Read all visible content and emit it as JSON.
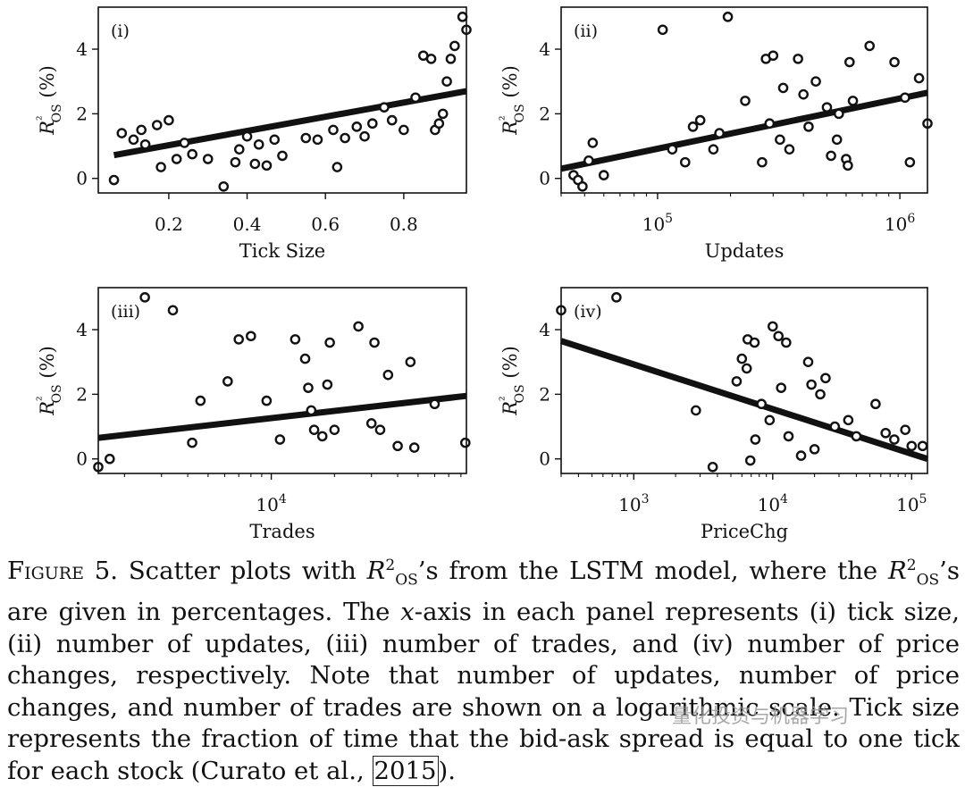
{
  "chart_data": [
    {
      "panel": "(i)",
      "type": "scatter",
      "xlabel": "Tick Size",
      "ylabel": "R²OS (%)",
      "x_scale": "linear",
      "xlim": [
        0.02,
        0.96
      ],
      "ylim": [
        -0.45,
        5.3
      ],
      "x_ticks": [
        0.2,
        0.4,
        0.6,
        0.8
      ],
      "x_tick_labels": [
        "0.2",
        "0.4",
        "0.6",
        "0.8"
      ],
      "y_ticks": [
        0,
        2,
        4
      ],
      "y_tick_labels": [
        "0",
        "2",
        "4"
      ],
      "trend_line": [
        [
          0.06,
          0.72
        ],
        [
          0.96,
          2.7
        ]
      ],
      "points": [
        [
          0.06,
          -0.05
        ],
        [
          0.08,
          1.4
        ],
        [
          0.11,
          1.2
        ],
        [
          0.13,
          1.5
        ],
        [
          0.14,
          1.05
        ],
        [
          0.17,
          1.65
        ],
        [
          0.18,
          0.35
        ],
        [
          0.2,
          1.8
        ],
        [
          0.22,
          0.6
        ],
        [
          0.24,
          1.1
        ],
        [
          0.26,
          0.75
        ],
        [
          0.3,
          0.6
        ],
        [
          0.34,
          -0.25
        ],
        [
          0.37,
          0.5
        ],
        [
          0.38,
          0.9
        ],
        [
          0.4,
          1.3
        ],
        [
          0.42,
          0.45
        ],
        [
          0.43,
          1.05
        ],
        [
          0.45,
          0.4
        ],
        [
          0.47,
          1.2
        ],
        [
          0.49,
          0.7
        ],
        [
          0.55,
          1.25
        ],
        [
          0.58,
          1.2
        ],
        [
          0.62,
          1.5
        ],
        [
          0.63,
          0.35
        ],
        [
          0.65,
          1.25
        ],
        [
          0.68,
          1.6
        ],
        [
          0.7,
          1.3
        ],
        [
          0.72,
          1.7
        ],
        [
          0.75,
          2.2
        ],
        [
          0.77,
          1.8
        ],
        [
          0.8,
          1.5
        ],
        [
          0.83,
          2.5
        ],
        [
          0.85,
          3.8
        ],
        [
          0.87,
          3.7
        ],
        [
          0.88,
          1.5
        ],
        [
          0.89,
          1.7
        ],
        [
          0.9,
          2.0
        ],
        [
          0.91,
          3.0
        ],
        [
          0.92,
          3.7
        ],
        [
          0.93,
          4.1
        ],
        [
          0.95,
          5.0
        ],
        [
          0.96,
          4.6
        ]
      ]
    },
    {
      "panel": "(ii)",
      "type": "scatter",
      "xlabel": "Updates",
      "ylabel": "R²OS (%)",
      "x_scale": "log",
      "xlim": [
        40000,
        1300000
      ],
      "ylim": [
        -0.45,
        5.3
      ],
      "x_ticks": [
        100000,
        1000000
      ],
      "x_tick_labels": [
        "10^5",
        "10^6"
      ],
      "y_ticks": [
        0,
        2,
        4
      ],
      "y_tick_labels": [
        "0",
        "2",
        "4"
      ],
      "trend_line": [
        [
          40000,
          0.3
        ],
        [
          1300000,
          2.65
        ]
      ],
      "points": [
        [
          45000,
          0.1
        ],
        [
          47000,
          -0.05
        ],
        [
          49000,
          -0.25
        ],
        [
          52000,
          0.55
        ],
        [
          54000,
          1.1
        ],
        [
          60000,
          0.1
        ],
        [
          105000,
          4.6
        ],
        [
          115000,
          0.9
        ],
        [
          130000,
          0.5
        ],
        [
          140000,
          1.6
        ],
        [
          150000,
          1.8
        ],
        [
          170000,
          0.9
        ],
        [
          180000,
          1.4
        ],
        [
          195000,
          5.0
        ],
        [
          230000,
          2.4
        ],
        [
          270000,
          0.5
        ],
        [
          280000,
          3.7
        ],
        [
          290000,
          1.7
        ],
        [
          300000,
          3.8
        ],
        [
          320000,
          1.2
        ],
        [
          330000,
          2.8
        ],
        [
          350000,
          0.9
        ],
        [
          380000,
          3.7
        ],
        [
          400000,
          2.6
        ],
        [
          420000,
          1.6
        ],
        [
          450000,
          3.0
        ],
        [
          500000,
          2.2
        ],
        [
          520000,
          0.7
        ],
        [
          550000,
          1.2
        ],
        [
          560000,
          2.0
        ],
        [
          600000,
          0.6
        ],
        [
          610000,
          0.4
        ],
        [
          620000,
          3.6
        ],
        [
          640000,
          2.4
        ],
        [
          750000,
          4.1
        ],
        [
          950000,
          3.6
        ],
        [
          1050000,
          2.5
        ],
        [
          1100000,
          0.5
        ],
        [
          1200000,
          3.1
        ],
        [
          1300000,
          1.7
        ]
      ]
    },
    {
      "panel": "(iii)",
      "type": "scatter",
      "xlabel": "Trades",
      "ylabel": "R²OS (%)",
      "x_scale": "log",
      "xlim": [
        1500,
        85000
      ],
      "ylim": [
        -0.45,
        5.3
      ],
      "x_ticks": [
        10000
      ],
      "x_tick_labels": [
        "10^4"
      ],
      "y_ticks": [
        0,
        2,
        4
      ],
      "y_tick_labels": [
        "0",
        "2",
        "4"
      ],
      "trend_line": [
        [
          1500,
          0.65
        ],
        [
          85000,
          1.95
        ]
      ],
      "points": [
        [
          1500,
          -0.25
        ],
        [
          1700,
          0.0
        ],
        [
          2500,
          5.0
        ],
        [
          3400,
          4.6
        ],
        [
          4200,
          0.5
        ],
        [
          4600,
          1.8
        ],
        [
          6200,
          2.4
        ],
        [
          7000,
          3.7
        ],
        [
          8000,
          3.8
        ],
        [
          9500,
          1.8
        ],
        [
          11000,
          0.6
        ],
        [
          13000,
          3.7
        ],
        [
          14500,
          3.1
        ],
        [
          15000,
          2.2
        ],
        [
          15500,
          1.5
        ],
        [
          16000,
          0.9
        ],
        [
          17500,
          0.7
        ],
        [
          18500,
          2.3
        ],
        [
          19000,
          3.6
        ],
        [
          20000,
          0.9
        ],
        [
          26000,
          4.1
        ],
        [
          30000,
          1.1
        ],
        [
          31000,
          3.6
        ],
        [
          33000,
          0.9
        ],
        [
          36000,
          2.6
        ],
        [
          40000,
          0.4
        ],
        [
          46000,
          3.0
        ],
        [
          48000,
          0.35
        ],
        [
          60000,
          1.7
        ],
        [
          84000,
          0.5
        ]
      ]
    },
    {
      "panel": "(iv)",
      "type": "scatter",
      "xlabel": "PriceChg",
      "ylabel": "R²OS (%)",
      "x_scale": "log",
      "xlim": [
        300,
        130000
      ],
      "ylim": [
        -0.45,
        5.3
      ],
      "x_ticks": [
        1000,
        10000,
        100000
      ],
      "x_tick_labels": [
        "10^3",
        "10^4",
        "10^5"
      ],
      "y_ticks": [
        0,
        2,
        4
      ],
      "y_tick_labels": [
        "0",
        "2",
        "4"
      ],
      "trend_line": [
        [
          300,
          3.65
        ],
        [
          130000,
          0.0
        ]
      ],
      "points": [
        [
          300,
          4.6
        ],
        [
          750,
          5.0
        ],
        [
          2800,
          1.5
        ],
        [
          3700,
          -0.25
        ],
        [
          5500,
          2.4
        ],
        [
          6000,
          3.1
        ],
        [
          6500,
          2.8
        ],
        [
          6600,
          3.7
        ],
        [
          6900,
          -0.05
        ],
        [
          7400,
          3.6
        ],
        [
          7500,
          0.6
        ],
        [
          8300,
          1.7
        ],
        [
          9500,
          1.2
        ],
        [
          10000,
          4.1
        ],
        [
          11000,
          3.8
        ],
        [
          11500,
          2.2
        ],
        [
          12500,
          3.6
        ],
        [
          13000,
          0.7
        ],
        [
          16000,
          0.1
        ],
        [
          18000,
          3.0
        ],
        [
          19000,
          2.3
        ],
        [
          20000,
          0.3
        ],
        [
          22000,
          2.0
        ],
        [
          24000,
          2.5
        ],
        [
          28000,
          1.0
        ],
        [
          35000,
          1.2
        ],
        [
          40000,
          0.7
        ],
        [
          55000,
          1.7
        ],
        [
          65000,
          0.8
        ],
        [
          75000,
          0.6
        ],
        [
          90000,
          0.9
        ],
        [
          100000,
          0.4
        ],
        [
          120000,
          0.4
        ]
      ]
    }
  ],
  "caption": {
    "label": "Figure 5.",
    "text_1": " Scatter plots with ",
    "text_2": "’s from the LSTM model, where the ",
    "text_3": "’s are given in percentages. The ",
    "x_var": "x",
    "text_4": "-axis in each panel represents (i) tick size, (ii) number of updates, (iii) number of trades, and (iv) number of price changes, respectively. Note that number of updates, number of price changes, and number of trades are shown on a logarithmic scale. Tick size represents the fraction of time that the bid-ask spread is equal to one tick for each stock (Curato et al., ",
    "cite_year": "2015",
    "text_5": ")."
  },
  "watermark": "量化投资与机器学习"
}
